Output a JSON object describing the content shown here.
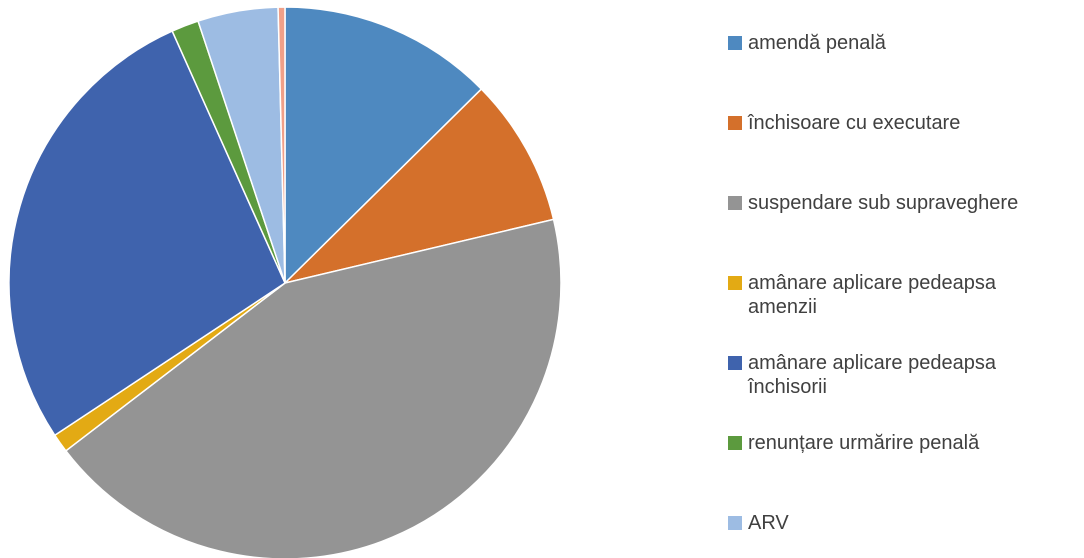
{
  "chart_data": {
    "type": "pie",
    "categories": [
      "amendă penală",
      "închisoare cu executare",
      "suspendare sub supraveghere",
      "amânare aplicare pedeapsa amenzii",
      "amânare aplicare pedeapsa închisorii",
      "renunțare urmărire penală",
      "ARV",
      null
    ],
    "values": [
      12.6,
      8.7,
      43.3,
      1.1,
      27.6,
      1.6,
      4.7,
      0.4
    ],
    "colors": [
      "#4e89c0",
      "#d4702b",
      "#949494",
      "#e3aa14",
      "#3f63ad",
      "#5c9a3e",
      "#9dbce3",
      "#f0a088"
    ],
    "legend": "right"
  }
}
